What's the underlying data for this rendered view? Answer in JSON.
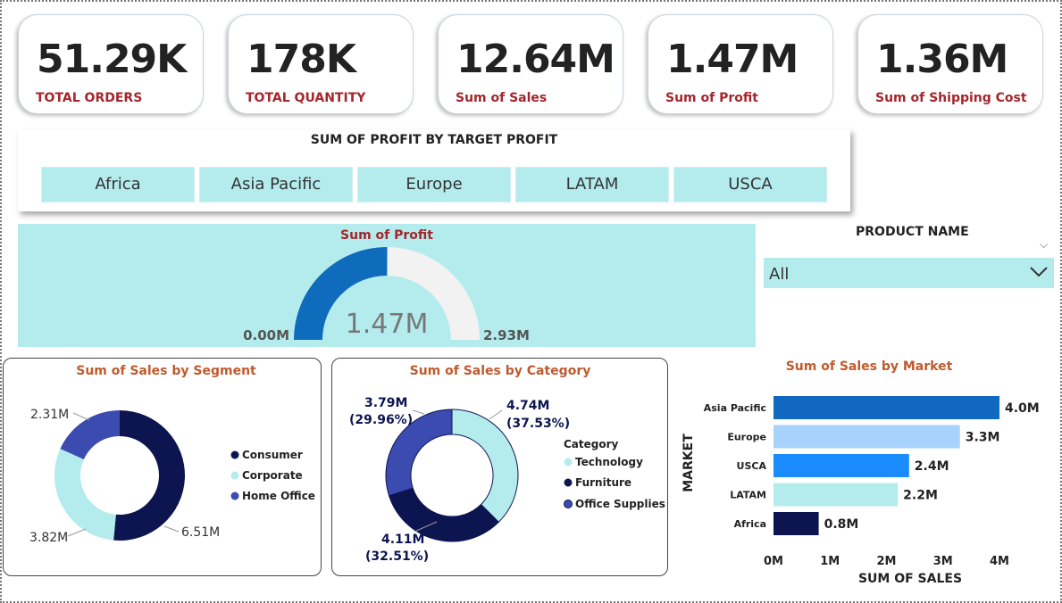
{
  "kpis": [
    {
      "value": "51.29K",
      "label": "TOTAL ORDERS"
    },
    {
      "value": "178K",
      "label": "TOTAL QUANTITY"
    },
    {
      "value": "12.64M",
      "label": "Sum of Sales"
    },
    {
      "value": "1.47M",
      "label": "Sum of Profit"
    },
    {
      "value": "1.36M",
      "label": "Sum of Shipping Cost"
    }
  ],
  "target_slicer": {
    "title": "SUM OF PROFIT BY TARGET PROFIT",
    "items": [
      "Africa",
      "Asia Pacific",
      "Europe",
      "LATAM",
      "USCA"
    ]
  },
  "product_filter": {
    "title": "PRODUCT NAME",
    "value": "All"
  },
  "colors": {
    "accent_red": "#a4262c",
    "title_orange": "#bf5a2c",
    "panel_cyan": "#b4ecee",
    "dark_navy": "#0d1550",
    "light_cyan": "#b4ecee",
    "mid_indigo": "#3c4bb0",
    "gauge_blue": "#0f6cbd"
  },
  "chart_data": [
    {
      "type": "gauge",
      "title": "Sum of Profit",
      "value": 1.47,
      "value_label": "1.47M",
      "min": 0,
      "max": 2.93,
      "min_label": "0.00M",
      "max_label": "2.93M"
    },
    {
      "type": "pie",
      "title": "Sum of Sales by Segment",
      "categories": [
        "Consumer",
        "Corporate",
        "Home Office"
      ],
      "values": [
        6.51,
        3.82,
        2.31
      ],
      "labels": [
        "6.51M",
        "3.82M",
        "2.31M"
      ],
      "legend": "right"
    },
    {
      "type": "pie",
      "title": "Sum of Sales by Category",
      "legend_title": "Category",
      "categories": [
        "Technology",
        "Furniture",
        "Office Supplies"
      ],
      "values": [
        4.74,
        4.11,
        3.79
      ],
      "labels": [
        "4.74M",
        "4.11M",
        "3.79M"
      ],
      "percents": [
        "(37.53%)",
        "(32.51%)",
        "(29.96%)"
      ],
      "legend": "right"
    },
    {
      "type": "bar",
      "title": "Sum of Sales by Market",
      "orientation": "horizontal",
      "categories": [
        "Asia Pacific",
        "Europe",
        "USCA",
        "LATAM",
        "Africa"
      ],
      "values": [
        4.0,
        3.3,
        2.4,
        2.2,
        0.8
      ],
      "labels": [
        "4.0M",
        "3.3M",
        "2.4M",
        "2.2M",
        "0.8M"
      ],
      "bar_colors": [
        "#1168c0",
        "#a6d2fb",
        "#1a8cff",
        "#b4ecee",
        "#0d1550"
      ],
      "xlabel": "SUM OF SALES",
      "ylabel": "MARKET",
      "xlim": [
        0,
        4
      ],
      "xticks": [
        "0M",
        "1M",
        "2M",
        "3M",
        "4M"
      ]
    }
  ]
}
